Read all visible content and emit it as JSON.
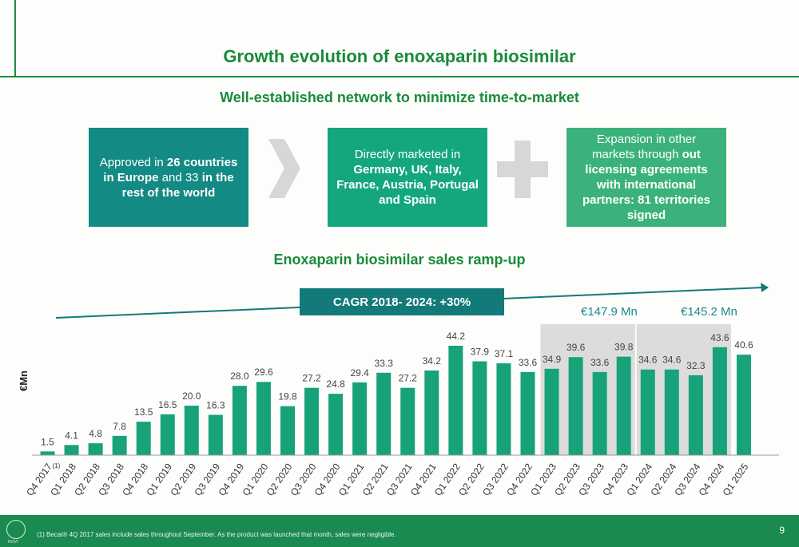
{
  "header": {
    "title": "Growth evolution of enoxaparin biosimilar",
    "subtitle": "Well-established network to minimize time-to-market"
  },
  "boxes": {
    "box1": {
      "parts": [
        {
          "text": "Approved in ",
          "bold": false
        },
        {
          "text": "26 countries in Europe",
          "bold": true
        },
        {
          "text": " and 33 ",
          "bold": false
        },
        {
          "text": "in the rest of the world",
          "bold": true
        }
      ]
    },
    "box2": {
      "parts": [
        {
          "text": "Directly marketed in ",
          "bold": false
        },
        {
          "text": "Germany, UK,  Italy, France, Austria, Portugal and Spain",
          "bold": true
        }
      ]
    },
    "box3": {
      "parts": [
        {
          "text": "Expansion in other markets through ",
          "bold": false
        },
        {
          "text": "out licensing agreements with international partners: 81 territories signed",
          "bold": true
        }
      ]
    }
  },
  "icons": {
    "chevron": "chevron-right-icon",
    "plus": "plus-icon",
    "logo": "rovi-logo-icon"
  },
  "section_title": "Enoxaparin biosimilar sales ramp-up",
  "cagr_label": "CAGR 2018- 2024: +30%",
  "period_totals": {
    "y2023": "€147.9 Mn",
    "y2024": "€145.2 Mn"
  },
  "colors": {
    "bar": "#17a27a",
    "highlight": "#dcdcdc",
    "accent": "#1a8a3c",
    "footer": "#1a8a50"
  },
  "chart_data": {
    "type": "bar",
    "ylabel": "€Mn",
    "categories": [
      "Q4 2017",
      "Q1 2018",
      "Q2 2018",
      "Q3 2018",
      "Q4 2018",
      "Q1 2019",
      "Q2 2019",
      "Q3 2019",
      "Q4 2019",
      "Q1 2020",
      "Q2 2020",
      "Q3 2020",
      "Q4 2020",
      "Q1 2021",
      "Q2 2021",
      "Q3 2021",
      "Q4 2021",
      "Q1 2022",
      "Q2 2022",
      "Q3 2022",
      "Q4 2022",
      "Q1 2023",
      "Q2 2023",
      "Q3 2023",
      "Q4 2023",
      "Q1 2024",
      "Q2 2024",
      "Q3 2024",
      "Q4 2024",
      "Q1 2025"
    ],
    "values": [
      1.5,
      4.1,
      4.8,
      7.8,
      13.5,
      16.5,
      20.0,
      16.3,
      28.0,
      29.6,
      19.8,
      27.2,
      24.8,
      29.4,
      33.3,
      27.2,
      34.2,
      44.2,
      37.9,
      37.1,
      33.6,
      34.9,
      39.6,
      33.6,
      39.8,
      34.6,
      34.6,
      32.3,
      43.6,
      40.6
    ],
    "labels": [
      "1.5",
      "4.1",
      "4.8",
      "7.8",
      "13.5",
      "16.5",
      "20.0",
      "16.3",
      "28.0",
      "29.6",
      "19.8",
      "27.2",
      "24.8",
      "29.4",
      "33.3",
      "27.2",
      "34.2",
      "44.2",
      "37.9",
      "37.1",
      "33.6",
      "34.9",
      "39.6",
      "33.6",
      "39.8",
      "34.6",
      "34.6",
      "32.3",
      "43.6",
      "40.6"
    ],
    "first_category_note": "(1)",
    "highlight_groups": [
      {
        "label": "€147.9 Mn",
        "categories": [
          "Q1 2023",
          "Q2 2023",
          "Q3 2023",
          "Q4 2023"
        ]
      },
      {
        "label": "€145.2 Mn",
        "categories": [
          "Q1 2024",
          "Q2 2024",
          "Q3 2024",
          "Q4 2024"
        ]
      }
    ],
    "ylim": [
      0,
      50
    ],
    "grid": false,
    "legend": "none"
  },
  "footer": {
    "footnote": "(1) Becat® 4Q 2017 sales include sales throughout September. As the product was launched that month, sales were negligible.",
    "page": "9",
    "logo_text": "ROVI"
  }
}
